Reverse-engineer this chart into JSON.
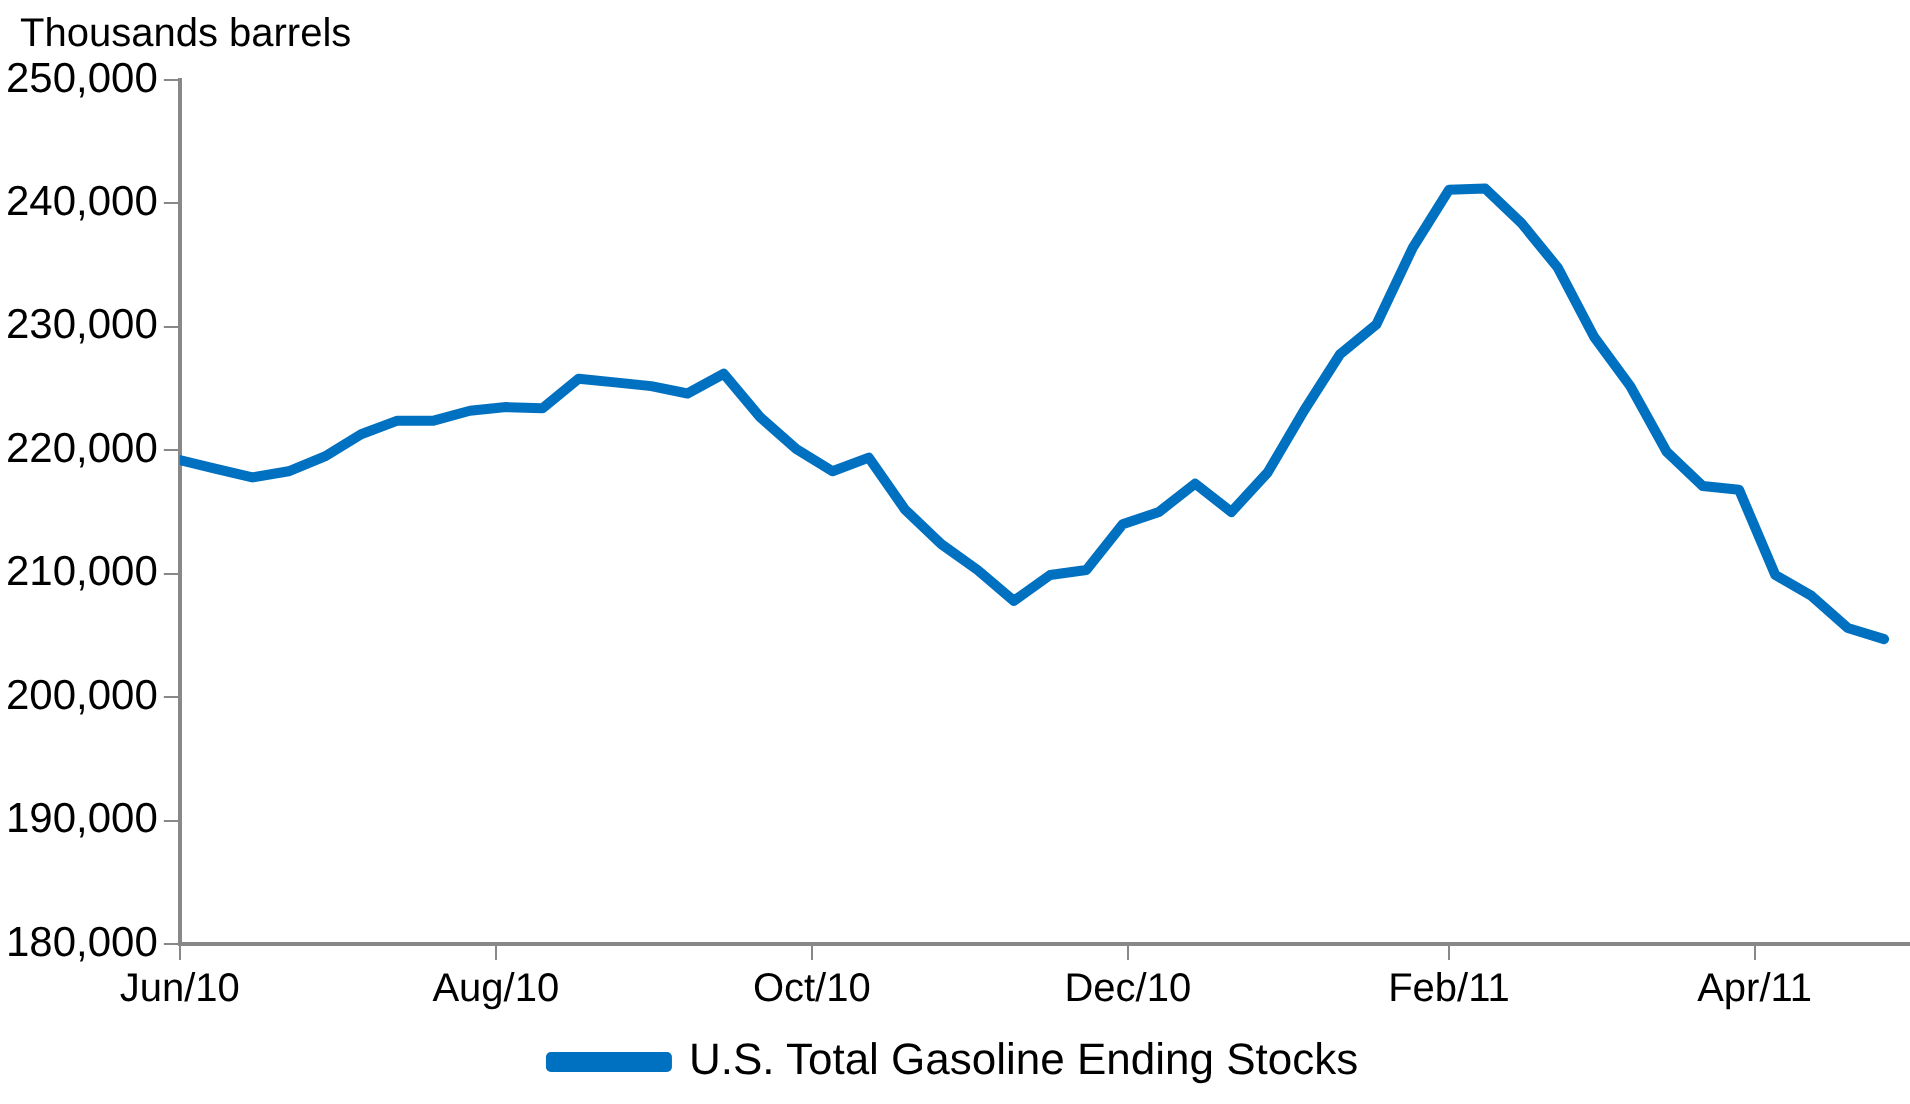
{
  "chart_data": {
    "type": "line",
    "ylabel": "Thousands barrels",
    "legend": "bottom",
    "marker": "none",
    "line_style": "solid",
    "grid": false,
    "x": [
      "2010-06-01",
      "2010-06-08",
      "2010-06-15",
      "2010-06-22",
      "2010-06-29",
      "2010-07-06",
      "2010-07-13",
      "2010-07-20",
      "2010-07-27",
      "2010-08-03",
      "2010-08-10",
      "2010-08-17",
      "2010-08-24",
      "2010-08-31",
      "2010-09-07",
      "2010-09-14",
      "2010-09-21",
      "2010-09-28",
      "2010-10-05",
      "2010-10-12",
      "2010-10-19",
      "2010-10-26",
      "2010-11-02",
      "2010-11-09",
      "2010-11-16",
      "2010-11-23",
      "2010-11-30",
      "2010-12-07",
      "2010-12-14",
      "2010-12-21",
      "2010-12-28",
      "2011-01-04",
      "2011-01-11",
      "2011-01-18",
      "2011-01-25",
      "2011-02-01",
      "2011-02-08",
      "2011-02-15",
      "2011-02-22",
      "2011-03-01",
      "2011-03-08",
      "2011-03-15",
      "2011-03-22",
      "2011-03-29",
      "2011-04-05",
      "2011-04-12",
      "2011-04-19",
      "2011-04-26"
    ],
    "series": [
      {
        "name": "U.S. Total Gasoline Ending Stocks",
        "color": "#0070c0",
        "values": [
          219200,
          218500,
          217800,
          218300,
          219500,
          221300,
          222400,
          222400,
          223200,
          223500,
          223400,
          225800,
          225500,
          225200,
          224600,
          226200,
          222700,
          220100,
          218300,
          219400,
          215200,
          212400,
          210300,
          207800,
          209900,
          210300,
          214000,
          215000,
          217300,
          215000,
          218200,
          223200,
          227800,
          230200,
          236400,
          241100,
          241200,
          238400,
          234800,
          229200,
          225200,
          219900,
          217100,
          216800,
          209900,
          208200,
          205600,
          204700
        ]
      }
    ],
    "xlim": [
      "2010-06-01",
      "2011-05-01"
    ],
    "xticks": [
      {
        "value": "2010-06-01",
        "label": "Jun/10"
      },
      {
        "value": "2010-08-01",
        "label": "Aug/10"
      },
      {
        "value": "2010-10-01",
        "label": "Oct/10"
      },
      {
        "value": "2010-12-01",
        "label": "Dec/10"
      },
      {
        "value": "2011-02-01",
        "label": "Feb/11"
      },
      {
        "value": "2011-04-01",
        "label": "Apr/11"
      }
    ],
    "ylim": [
      180000,
      250000
    ],
    "yticks": [
      {
        "value": 180000,
        "label": "180,000"
      },
      {
        "value": 190000,
        "label": "190,000"
      },
      {
        "value": 200000,
        "label": "200,000"
      },
      {
        "value": 210000,
        "label": "210,000"
      },
      {
        "value": 220000,
        "label": "220,000"
      },
      {
        "value": 230000,
        "label": "230,000"
      },
      {
        "value": 240000,
        "label": "240,000"
      },
      {
        "value": 250000,
        "label": "250,000"
      }
    ]
  }
}
